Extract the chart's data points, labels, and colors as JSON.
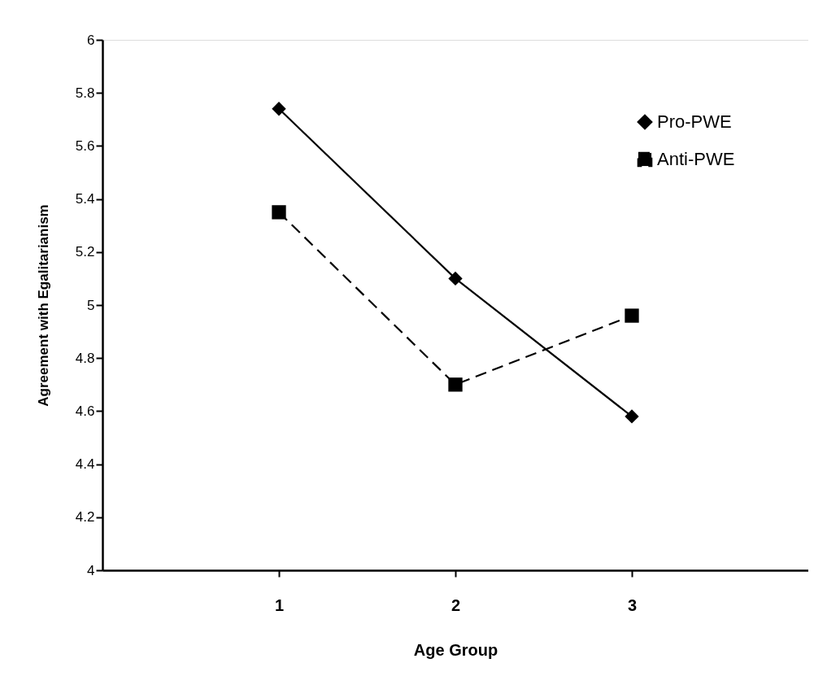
{
  "chart_data": {
    "type": "line",
    "xlabel": "Age Group",
    "ylabel": "Agreement with Egalitarianism",
    "x": [
      1,
      2,
      3
    ],
    "xlim": [
      0,
      4
    ],
    "xticks": [
      1,
      2,
      3
    ],
    "ylim": [
      4,
      6
    ],
    "yticks": [
      4,
      4.2,
      4.4,
      4.6,
      4.8,
      5,
      5.2,
      5.4,
      5.6,
      5.8,
      6
    ],
    "grid": false,
    "legend": "top right",
    "series": [
      {
        "name": "Pro-PWE",
        "color": "#000000",
        "values": [
          5.74,
          5.1,
          4.58
        ],
        "marker": "diamond",
        "line_style": "solid"
      },
      {
        "name": "Anti-PWE",
        "color": "#000000",
        "values": [
          5.35,
          4.7,
          4.96
        ],
        "marker": "square",
        "line_style": "dashed"
      }
    ]
  }
}
